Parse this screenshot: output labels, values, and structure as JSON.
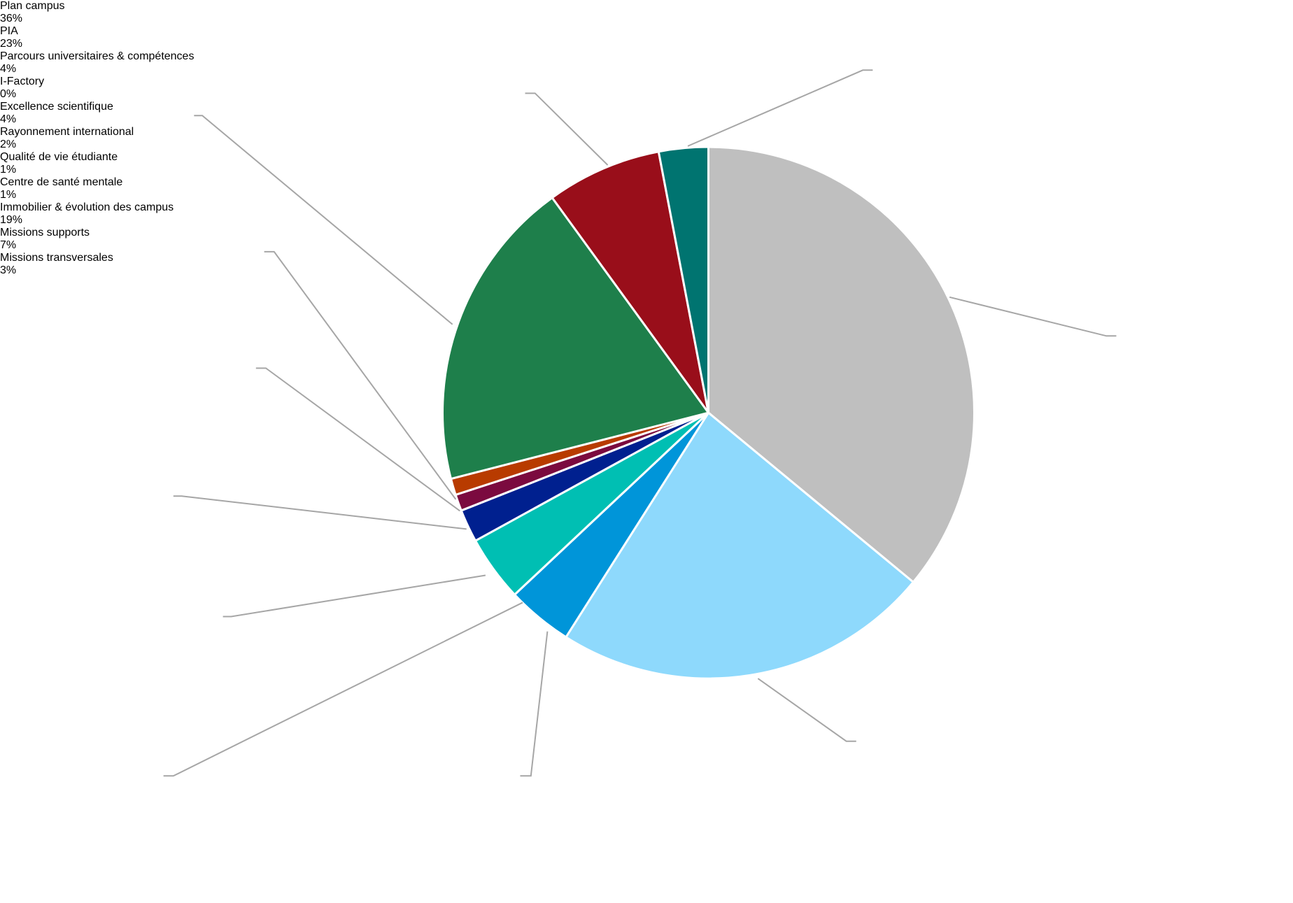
{
  "chart_data": {
    "type": "pie",
    "categories": [
      "Plan campus",
      "PIA",
      "Parcours universitaires & compétences",
      "I-Factory",
      "Excellence scientifique",
      "Rayonnement international",
      "Qualité de vie étudiante",
      "Centre de santé mentale",
      "Immobilier & évolution des campus",
      "Missions supports",
      "Missions transversales"
    ],
    "values": [
      36,
      23,
      4,
      0,
      4,
      2,
      1,
      1,
      19,
      7,
      3
    ],
    "value_labels": [
      "36%",
      "23%",
      "4%",
      "0%",
      "4%",
      "2%",
      "1%",
      "1%",
      "19%",
      "7%",
      "3%"
    ],
    "colors": [
      "#bfbfbf",
      "#8ed9fc",
      "#0095d9",
      "#5b9bd5",
      "#00bfb3",
      "#00208f",
      "#7b0a3f",
      "#b83b00",
      "#1e7f4b",
      "#990e1a",
      "#007470"
    ]
  }
}
